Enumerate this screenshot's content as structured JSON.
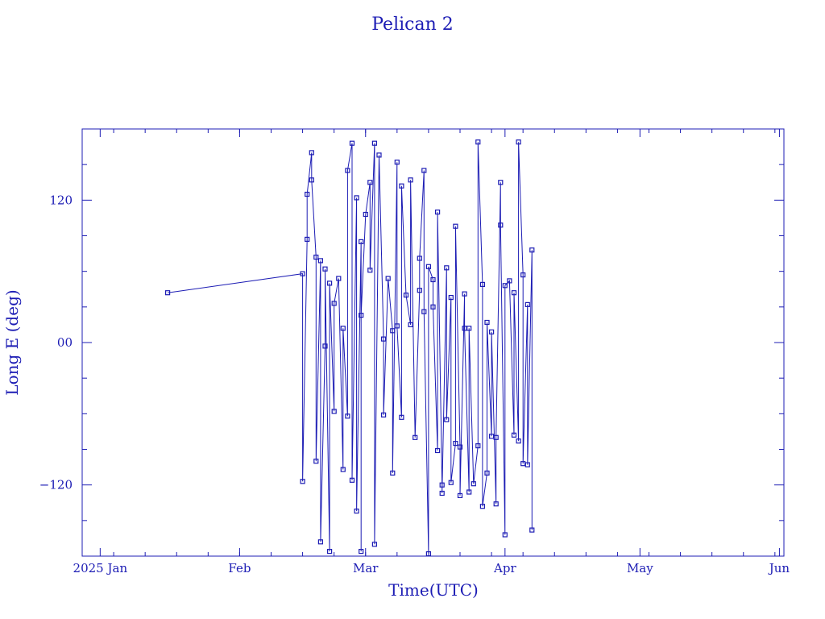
{
  "chart_data": {
    "type": "line",
    "title": "Pelican 2",
    "xlabel": "Time(UTC)",
    "ylabel": "Long E (deg)",
    "x_ticks": [
      "2025 Jan",
      "Feb",
      "Mar",
      "Apr",
      "May",
      "Jun"
    ],
    "y_ticks": [
      "120",
      "00",
      "−120"
    ],
    "xlim": [
      "2024-12-28",
      "2025-06-02"
    ],
    "ylim": [
      -180,
      180
    ],
    "grid": false,
    "legend": "none",
    "marker": "square",
    "color": "#1c1cb4",
    "series": [
      {
        "points": [
          [
            "2025-01-16",
            42
          ],
          [
            "2025-02-15",
            58
          ],
          [
            "2025-02-15",
            -117
          ],
          [
            "2025-02-16",
            87
          ],
          [
            "2025-02-16",
            125
          ],
          [
            "2025-02-17",
            160
          ],
          [
            "2025-02-17",
            137
          ],
          [
            "2025-02-18",
            72
          ],
          [
            "2025-02-18",
            -100
          ],
          [
            "2025-02-19",
            69
          ],
          [
            "2025-02-19",
            -168
          ],
          [
            "2025-02-20",
            -3
          ],
          [
            "2025-02-20",
            62
          ],
          [
            "2025-02-21",
            -176
          ],
          [
            "2025-02-21",
            50
          ],
          [
            "2025-02-22",
            -58
          ],
          [
            "2025-02-22",
            33
          ],
          [
            "2025-02-23",
            54
          ],
          [
            "2025-02-24",
            -107
          ],
          [
            "2025-02-24",
            12
          ],
          [
            "2025-02-25",
            -62
          ],
          [
            "2025-02-25",
            145
          ],
          [
            "2025-02-26",
            168
          ],
          [
            "2025-02-26",
            -116
          ],
          [
            "2025-02-27",
            122
          ],
          [
            "2025-02-27",
            -142
          ],
          [
            "2025-02-28",
            85
          ],
          [
            "2025-02-28",
            -176
          ],
          [
            "2025-02-28",
            23
          ],
          [
            "2025-03-01",
            108
          ],
          [
            "2025-03-02",
            135
          ],
          [
            "2025-03-02",
            61
          ],
          [
            "2025-03-03",
            168
          ],
          [
            "2025-03-03",
            -170
          ],
          [
            "2025-03-04",
            158
          ],
          [
            "2025-03-05",
            3
          ],
          [
            "2025-03-05",
            -61
          ],
          [
            "2025-03-06",
            54
          ],
          [
            "2025-03-07",
            10
          ],
          [
            "2025-03-07",
            -110
          ],
          [
            "2025-03-08",
            152
          ],
          [
            "2025-03-08",
            14
          ],
          [
            "2025-03-09",
            -63
          ],
          [
            "2025-03-09",
            132
          ],
          [
            "2025-03-10",
            40
          ],
          [
            "2025-03-11",
            15
          ],
          [
            "2025-03-11",
            137
          ],
          [
            "2025-03-12",
            -80
          ],
          [
            "2025-03-13",
            44
          ],
          [
            "2025-03-13",
            71
          ],
          [
            "2025-03-14",
            145
          ],
          [
            "2025-03-14",
            26
          ],
          [
            "2025-03-15",
            -178
          ],
          [
            "2025-03-15",
            64
          ],
          [
            "2025-03-16",
            53
          ],
          [
            "2025-03-16",
            30
          ],
          [
            "2025-03-17",
            -91
          ],
          [
            "2025-03-17",
            110
          ],
          [
            "2025-03-18",
            -120
          ],
          [
            "2025-03-18",
            -127
          ],
          [
            "2025-03-19",
            63
          ],
          [
            "2025-03-19",
            -65
          ],
          [
            "2025-03-20",
            38
          ],
          [
            "2025-03-20",
            -118
          ],
          [
            "2025-03-21",
            -85
          ],
          [
            "2025-03-21",
            98
          ],
          [
            "2025-03-22",
            -88
          ],
          [
            "2025-03-22",
            -129
          ],
          [
            "2025-03-23",
            41
          ],
          [
            "2025-03-23",
            12
          ],
          [
            "2025-03-24",
            -126
          ],
          [
            "2025-03-24",
            12
          ],
          [
            "2025-03-25",
            -119
          ],
          [
            "2025-03-26",
            -87
          ],
          [
            "2025-03-26",
            169
          ],
          [
            "2025-03-27",
            49
          ],
          [
            "2025-03-27",
            -138
          ],
          [
            "2025-03-28",
            -110
          ],
          [
            "2025-03-28",
            17
          ],
          [
            "2025-03-29",
            -79
          ],
          [
            "2025-03-29",
            9
          ],
          [
            "2025-03-30",
            -136
          ],
          [
            "2025-03-30",
            -80
          ],
          [
            "2025-03-31",
            135
          ],
          [
            "2025-03-31",
            99
          ],
          [
            "2025-04-01",
            -162
          ],
          [
            "2025-04-01",
            48
          ],
          [
            "2025-04-02",
            52
          ],
          [
            "2025-04-03",
            -78
          ],
          [
            "2025-04-03",
            42
          ],
          [
            "2025-04-04",
            -83
          ],
          [
            "2025-04-04",
            169
          ],
          [
            "2025-04-05",
            57
          ],
          [
            "2025-04-05",
            -102
          ],
          [
            "2025-04-06",
            32
          ],
          [
            "2025-04-06",
            -103
          ],
          [
            "2025-04-07",
            78
          ],
          [
            "2025-04-07",
            -158
          ]
        ]
      }
    ]
  }
}
